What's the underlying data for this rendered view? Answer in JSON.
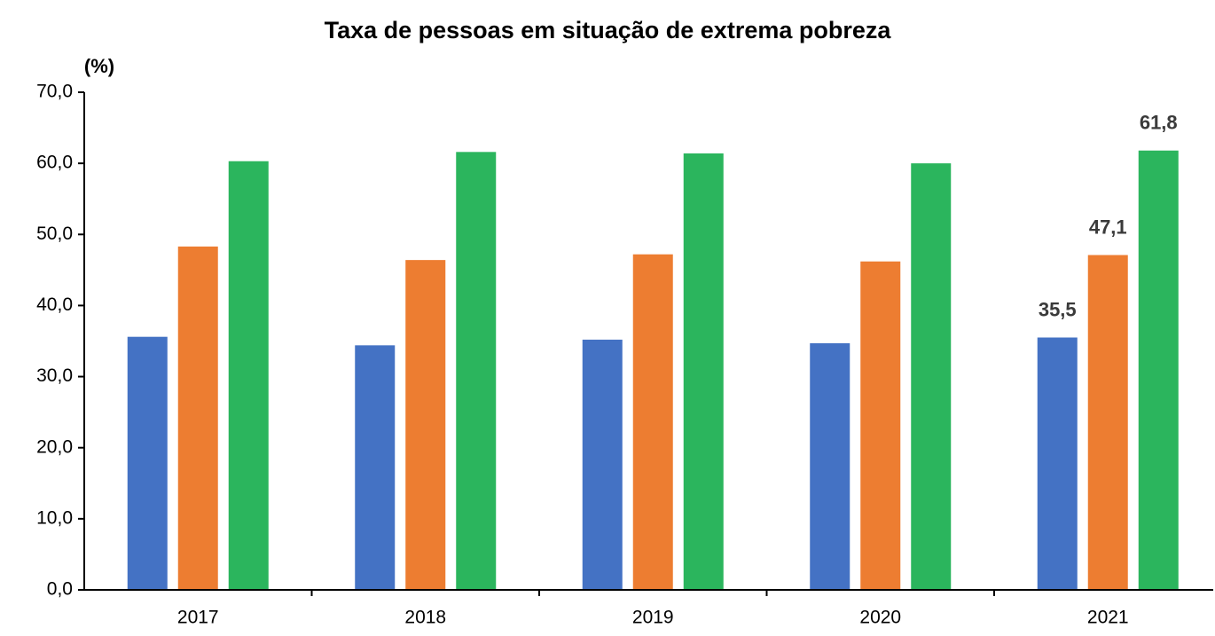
{
  "chart_data": {
    "type": "bar",
    "title": "Taxa de pessoas em situação de extrema pobreza",
    "y_label": "(%)",
    "categories": [
      "2017",
      "2018",
      "2019",
      "2020",
      "2021"
    ],
    "series": [
      {
        "color": "#4472c4",
        "values": [
          35.6,
          34.4,
          35.2,
          34.7,
          35.5
        ],
        "value_labels": [
          null,
          null,
          null,
          null,
          "35,5"
        ]
      },
      {
        "color": "#ed7d31",
        "values": [
          48.3,
          46.4,
          47.2,
          46.2,
          47.1
        ],
        "value_labels": [
          null,
          null,
          null,
          null,
          "47,1"
        ]
      },
      {
        "color": "#2bb55d",
        "values": [
          60.3,
          61.6,
          61.4,
          60.0,
          61.8
        ],
        "value_labels": [
          null,
          null,
          null,
          null,
          "61,8"
        ]
      }
    ],
    "ylim": [
      0,
      70
    ],
    "yticks": [
      {
        "value": 0,
        "label": "0,0"
      },
      {
        "value": 10,
        "label": "10,0"
      },
      {
        "value": 20,
        "label": "20,0"
      },
      {
        "value": 30,
        "label": "30,0"
      },
      {
        "value": 40,
        "label": "40,0"
      },
      {
        "value": 50,
        "label": "50,0"
      },
      {
        "value": 60,
        "label": "60,0"
      },
      {
        "value": 70,
        "label": "70,0"
      }
    ],
    "grid": false
  }
}
